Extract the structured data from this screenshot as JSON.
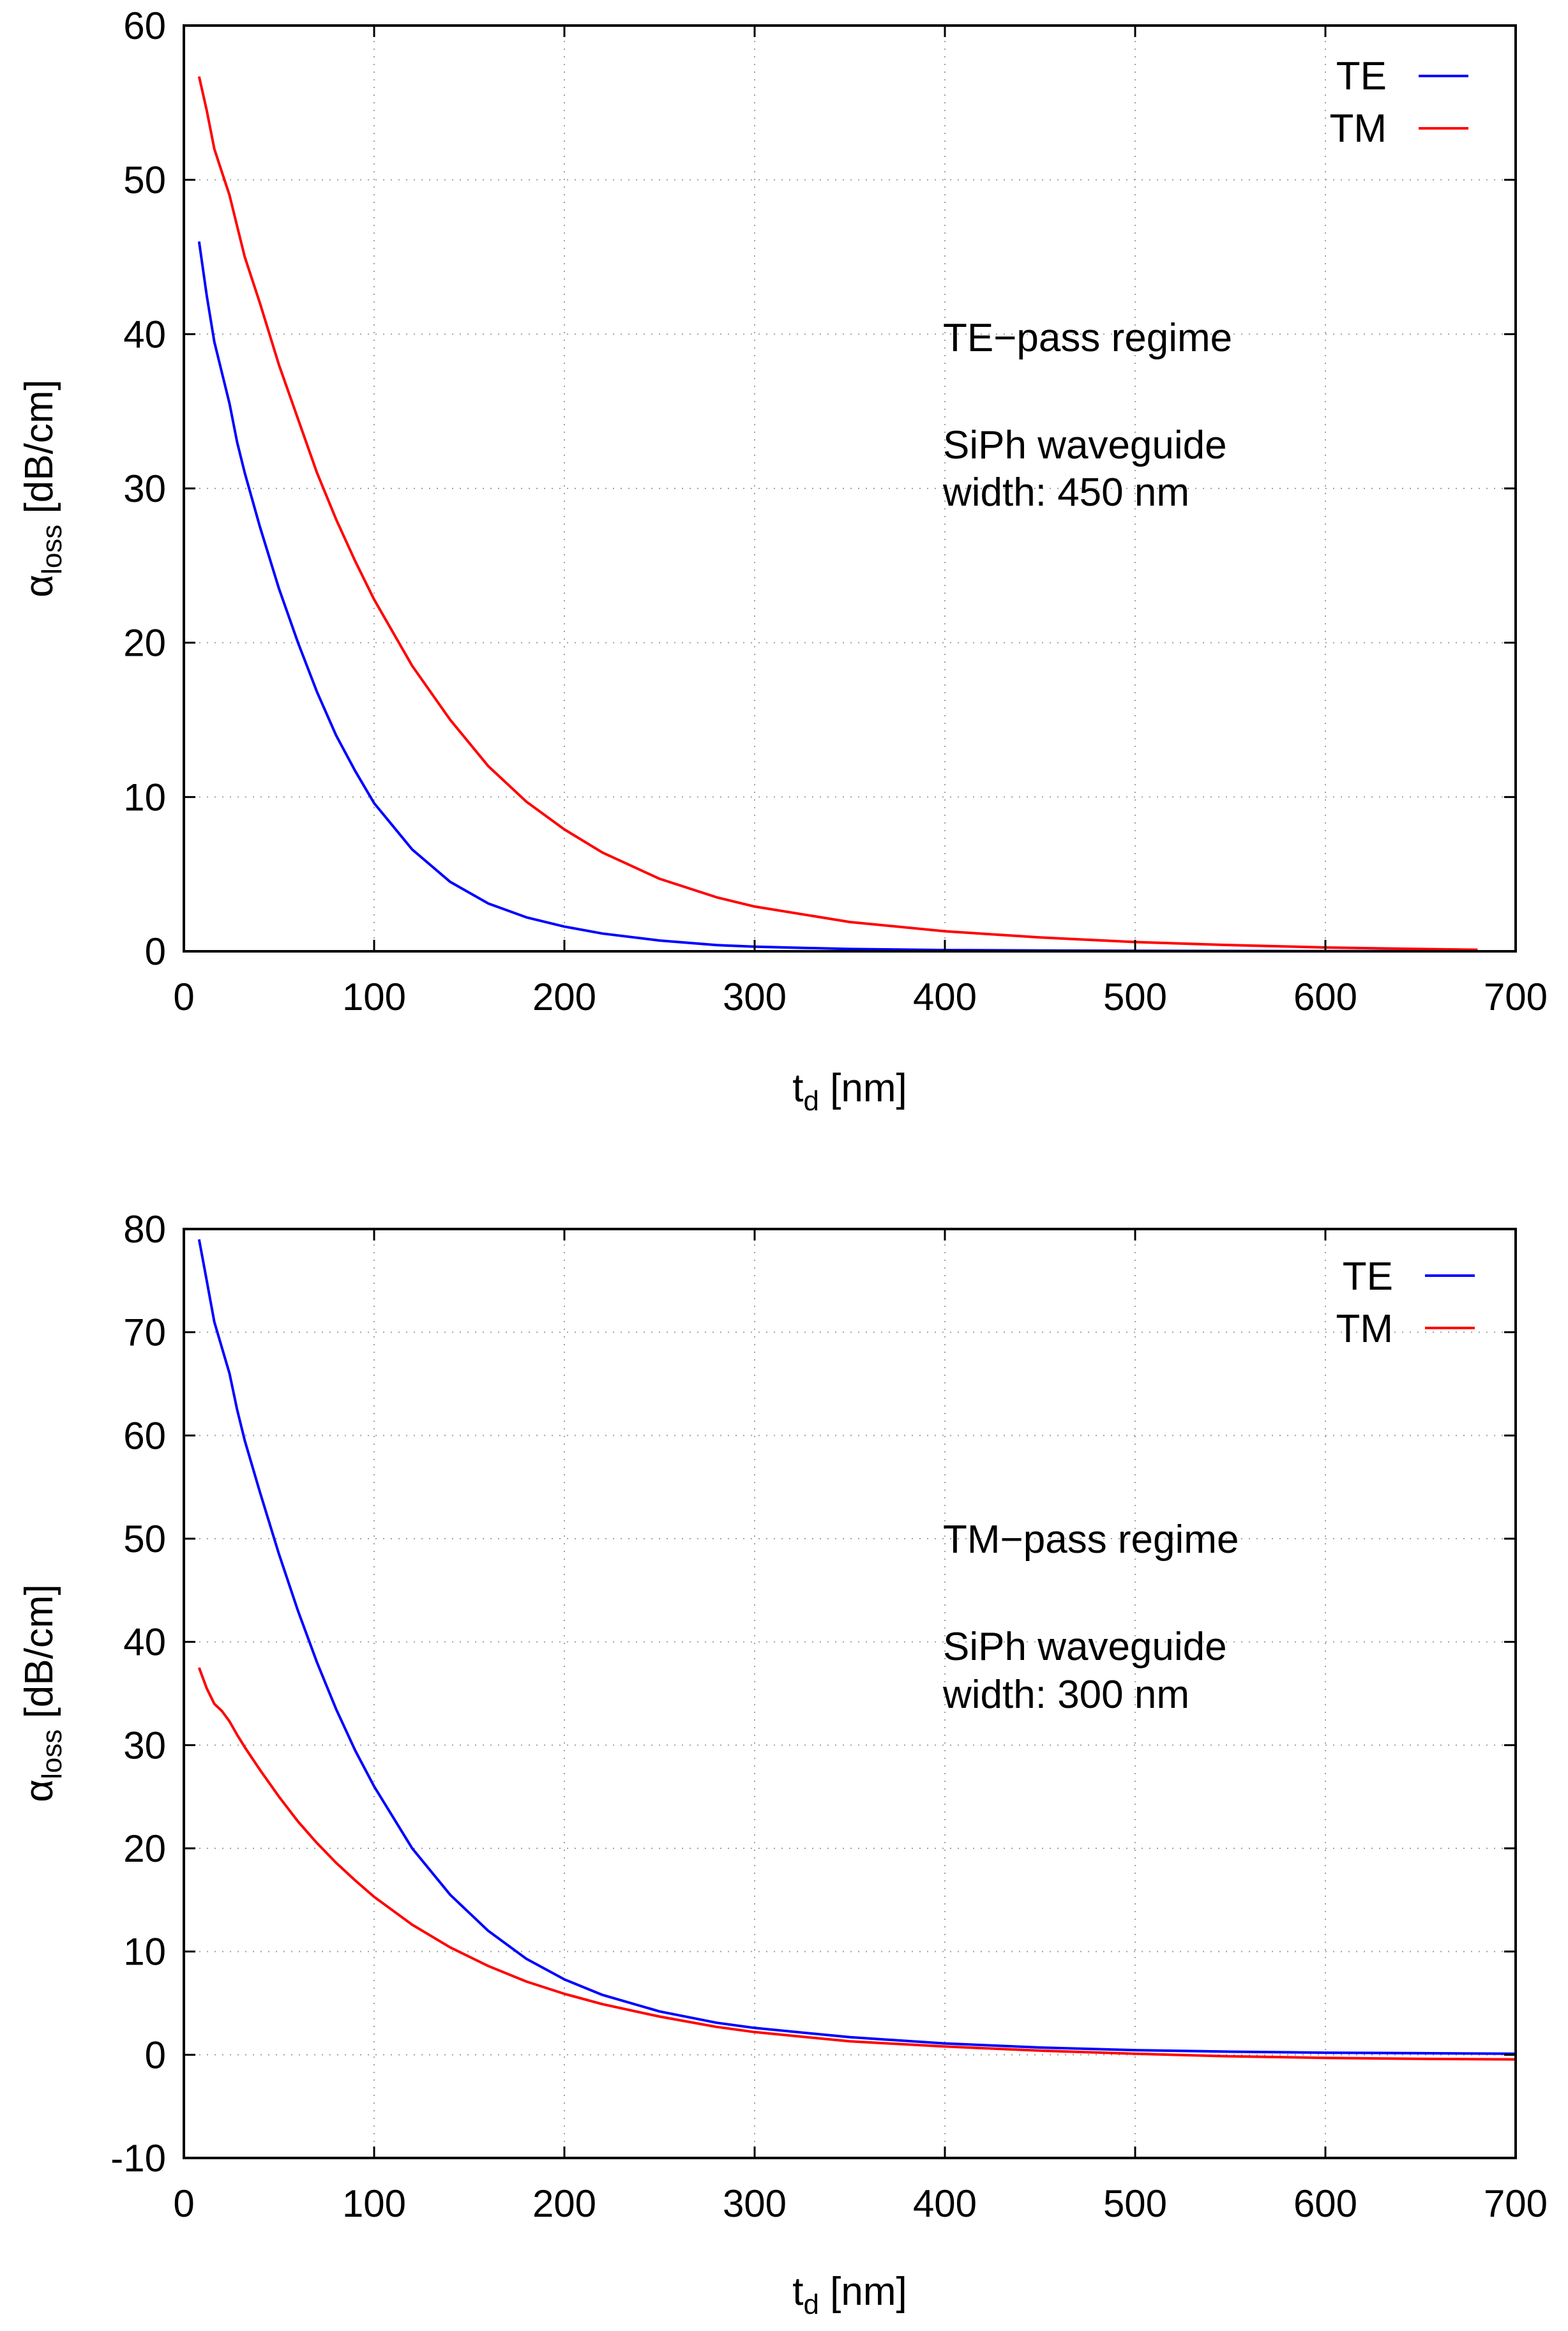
{
  "figure": {
    "background": "#ffffff"
  },
  "chart_data": [
    {
      "type": "line",
      "xlabel_main": "t",
      "xlabel_sub": "d",
      "xlabel_unit": " [nm]",
      "ylabel_main": "α",
      "ylabel_sub": "loss",
      "ylabel_unit": " [dB/cm]",
      "xlim": [
        0,
        700
      ],
      "ylim": [
        0,
        60
      ],
      "xticks": [
        0,
        100,
        200,
        300,
        400,
        500,
        600,
        700
      ],
      "yticks": [
        0,
        10,
        20,
        30,
        40,
        50,
        60
      ],
      "xtick_labels": [
        "0",
        "100",
        "200",
        "300",
        "400",
        "500",
        "600",
        "700"
      ],
      "ytick_labels": [
        "0",
        "10",
        "20",
        "30",
        "40",
        "50",
        "60"
      ],
      "grid": true,
      "legend_position": "top-right",
      "annotation": [
        "TE−pass regime",
        "",
        "SiPh waveguide",
        "width: 450 nm"
      ],
      "series": [
        {
          "name": "TE",
          "color": "#0000ff",
          "x": [
            8,
            12,
            16,
            20,
            24,
            28,
            32,
            40,
            50,
            60,
            70,
            80,
            90,
            100,
            120,
            140,
            160,
            180,
            200,
            220,
            250,
            280,
            300,
            350,
            400,
            450,
            500,
            550,
            600,
            650,
            680
          ],
          "y": [
            46,
            42.5,
            39.5,
            37.5,
            35.5,
            33,
            31,
            27.5,
            23.5,
            20,
            16.8,
            14,
            11.7,
            9.6,
            6.6,
            4.5,
            3.1,
            2.2,
            1.6,
            1.15,
            0.7,
            0.4,
            0.3,
            0.15,
            0.08,
            0.05,
            0.03,
            0.02,
            0.01,
            0.01,
            0.01
          ]
        },
        {
          "name": "TM",
          "color": "#ff0000",
          "x": [
            8,
            12,
            16,
            20,
            24,
            28,
            32,
            40,
            50,
            60,
            70,
            80,
            90,
            100,
            120,
            140,
            160,
            180,
            200,
            220,
            250,
            280,
            300,
            350,
            400,
            450,
            500,
            550,
            600,
            650,
            680
          ],
          "y": [
            56.7,
            54.5,
            52,
            50.5,
            49,
            47,
            45,
            42,
            38,
            34.5,
            31,
            28,
            25.3,
            22.8,
            18.5,
            15,
            12,
            9.7,
            7.9,
            6.4,
            4.7,
            3.5,
            2.9,
            1.9,
            1.3,
            0.9,
            0.6,
            0.4,
            0.25,
            0.15,
            0.1
          ]
        }
      ]
    },
    {
      "type": "line",
      "xlabel_main": "t",
      "xlabel_sub": "d",
      "xlabel_unit": " [nm]",
      "ylabel_main": "α",
      "ylabel_sub": "loss",
      "ylabel_unit": " [dB/cm]",
      "xlim": [
        0,
        700
      ],
      "ylim": [
        -10,
        80
      ],
      "xticks": [
        0,
        100,
        200,
        300,
        400,
        500,
        600,
        700
      ],
      "yticks": [
        -10,
        0,
        10,
        20,
        30,
        40,
        50,
        60,
        70,
        80
      ],
      "xtick_labels": [
        "0",
        "100",
        "200",
        "300",
        "400",
        "500",
        "600",
        "700"
      ],
      "ytick_labels": [
        "-10",
        "0",
        "10",
        "20",
        "30",
        "40",
        "50",
        "60",
        "70",
        "80"
      ],
      "grid": true,
      "legend_position": "top-right",
      "annotation": [
        "TM−pass regime",
        "",
        "SiPh waveguide",
        "width: 300 nm"
      ],
      "series": [
        {
          "name": "TE",
          "color": "#0000ff",
          "x": [
            8,
            12,
            16,
            20,
            24,
            28,
            32,
            40,
            50,
            60,
            70,
            80,
            90,
            100,
            120,
            140,
            160,
            180,
            200,
            220,
            250,
            280,
            300,
            350,
            400,
            450,
            500,
            550,
            600,
            650,
            700
          ],
          "y": [
            79,
            75,
            71,
            68.5,
            66,
            62.5,
            59.5,
            54.5,
            48.5,
            43,
            38,
            33.5,
            29.5,
            26,
            20,
            15.5,
            12,
            9.3,
            7.3,
            5.8,
            4.2,
            3.1,
            2.6,
            1.7,
            1.1,
            0.7,
            0.45,
            0.3,
            0.2,
            0.15,
            0.1
          ]
        },
        {
          "name": "TM",
          "color": "#ff0000",
          "x": [
            8,
            12,
            16,
            20,
            24,
            28,
            32,
            40,
            50,
            60,
            70,
            80,
            90,
            100,
            120,
            140,
            160,
            180,
            200,
            220,
            250,
            280,
            300,
            350,
            400,
            450,
            500,
            550,
            600,
            650,
            700
          ],
          "y": [
            37.5,
            35.5,
            34,
            33.3,
            32.3,
            31,
            29.8,
            27.6,
            25,
            22.6,
            20.5,
            18.6,
            16.9,
            15.3,
            12.6,
            10.4,
            8.6,
            7.1,
            5.9,
            4.9,
            3.7,
            2.7,
            2.2,
            1.3,
            0.8,
            0.4,
            0.1,
            -0.15,
            -0.3,
            -0.4,
            -0.45
          ]
        }
      ]
    }
  ]
}
